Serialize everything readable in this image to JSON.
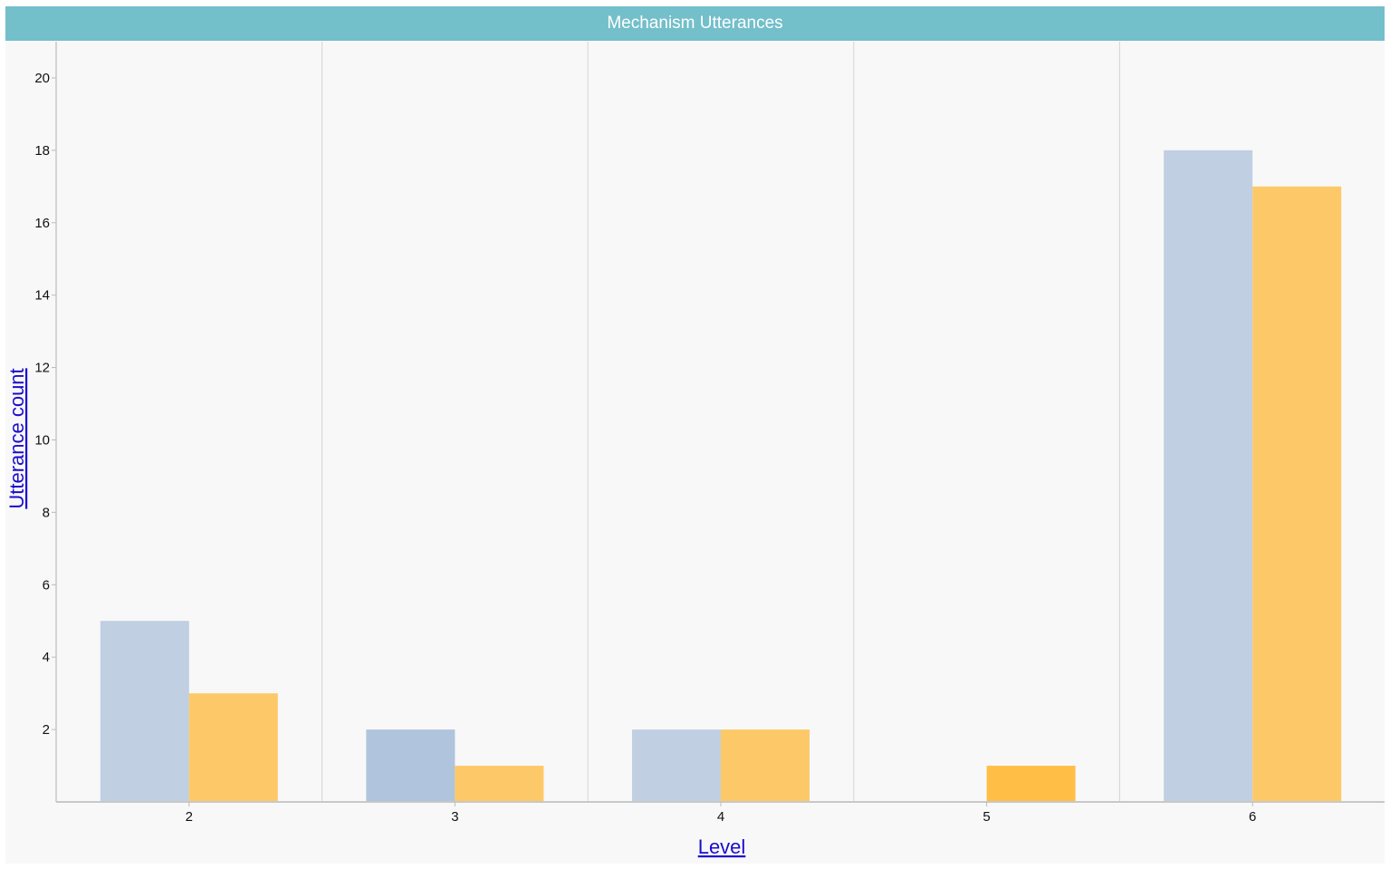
{
  "title": "Mechanism Utterances",
  "chart_data": {
    "type": "bar",
    "xlabel": "Level",
    "ylabel": "Utterance count",
    "categories": [
      "2",
      "3",
      "4",
      "5",
      "6"
    ],
    "series": [
      {
        "values": [
          5,
          2,
          2,
          0,
          18
        ],
        "color": "#c0cfe2"
      },
      {
        "values": [
          3,
          1,
          2,
          1,
          17
        ],
        "color": "#fdc968"
      }
    ],
    "highlight_colors": {
      "blue": "#b0c4dd",
      "orange": "#ffbf47"
    },
    "ylim": [
      0,
      21
    ],
    "yticks": [
      2,
      4,
      6,
      8,
      10,
      12,
      14,
      16,
      18,
      20
    ],
    "grid": "vertical"
  }
}
